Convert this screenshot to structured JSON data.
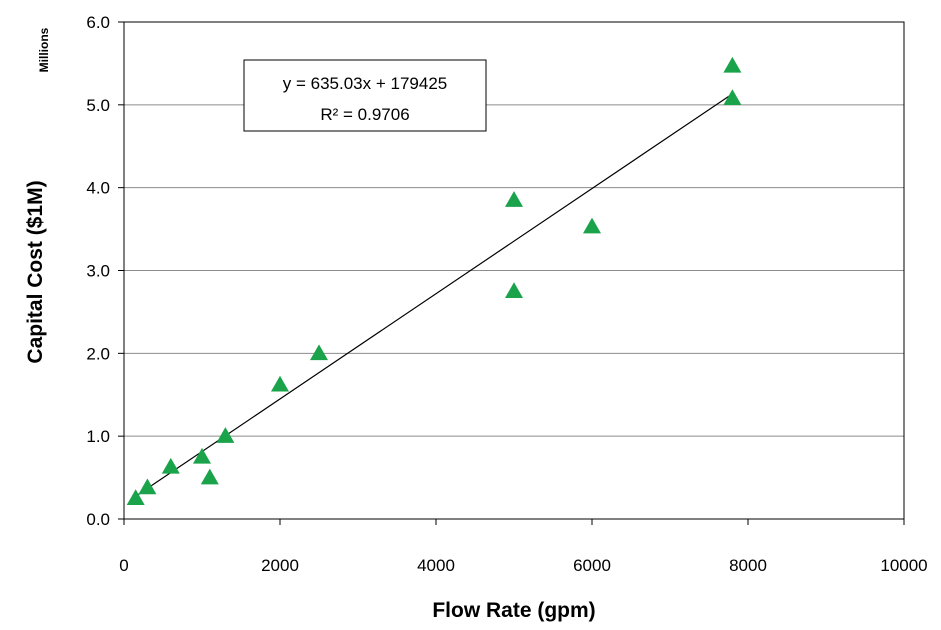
{
  "chart_data": {
    "type": "scatter",
    "title": "",
    "xlabel": "Flow Rate (gpm)",
    "ylabel": "Capital Cost ($1M)",
    "y_units_label": "Millions",
    "xlim": [
      0,
      10000
    ],
    "ylim": [
      0,
      6.0
    ],
    "x_ticks": [
      0,
      2000,
      4000,
      6000,
      8000,
      10000
    ],
    "x_tick_labels": [
      "0",
      "2000",
      "4000",
      "6000",
      "8000",
      "10000"
    ],
    "y_ticks": [
      0,
      1,
      2,
      3,
      4,
      5,
      6
    ],
    "y_tick_labels": [
      "0.0",
      "1.0",
      "2.0",
      "3.0",
      "4.0",
      "5.0",
      "6.0"
    ],
    "grid": "horizontal",
    "marker": "triangle",
    "marker_color": "#1aa34a",
    "points": [
      {
        "x": 150,
        "y": 0.25
      },
      {
        "x": 300,
        "y": 0.38
      },
      {
        "x": 600,
        "y": 0.63
      },
      {
        "x": 1000,
        "y": 0.75
      },
      {
        "x": 1100,
        "y": 0.5
      },
      {
        "x": 1300,
        "y": 1.0
      },
      {
        "x": 2000,
        "y": 1.62
      },
      {
        "x": 2500,
        "y": 2.0
      },
      {
        "x": 5000,
        "y": 3.85
      },
      {
        "x": 5000,
        "y": 2.75
      },
      {
        "x": 6000,
        "y": 3.53
      },
      {
        "x": 7800,
        "y": 5.47
      },
      {
        "x": 7800,
        "y": 5.08
      }
    ],
    "trendline": {
      "x_range": [
        150,
        7800
      ],
      "slope_per_gpm_millions": 0.00063503,
      "intercept_millions": 0.179425,
      "equation_text": "y = 635.03x + 179425",
      "r2_text": "R² = 0.9706"
    }
  }
}
